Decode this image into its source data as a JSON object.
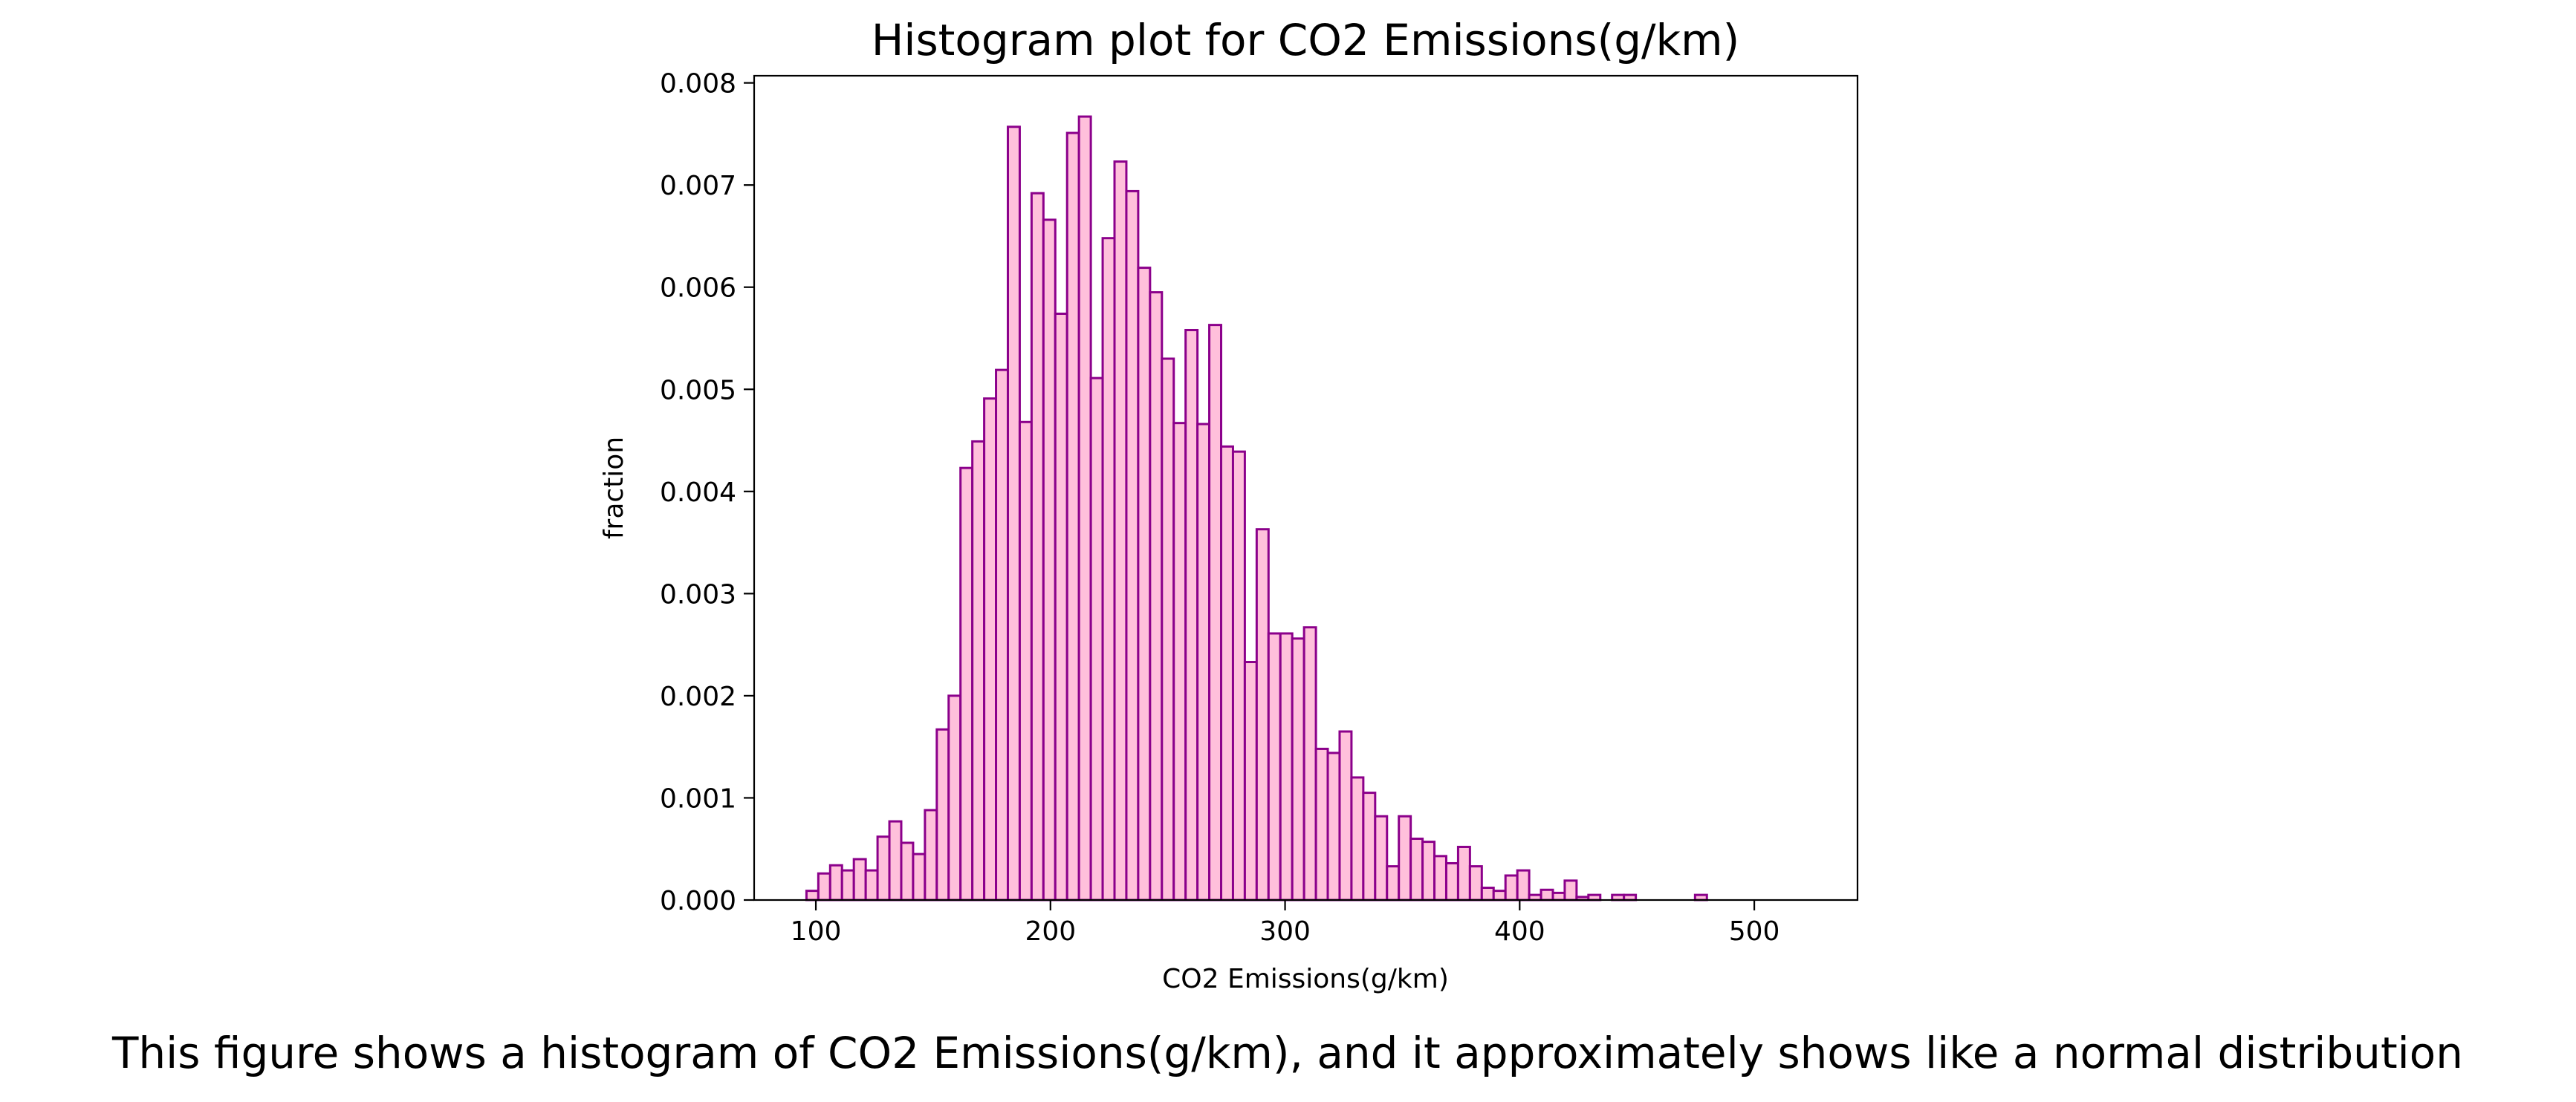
{
  "chart_data": {
    "type": "bar",
    "title": "Histogram plot for CO2 Emissions(g/km)",
    "xlabel": "CO2 Emissions(g/km)",
    "ylabel": "fraction",
    "caption": "This figure shows a histogram of CO2 Emissions(g/km), and it approximately shows like a normal distribution",
    "xlim": [
      73.7,
      544
    ],
    "ylim": [
      0,
      0.00807
    ],
    "xticks": [
      100,
      200,
      300,
      400,
      500
    ],
    "xtick_labels": [
      "100",
      "200",
      "300",
      "400",
      "500"
    ],
    "yticks": [
      0,
      0.001,
      0.002,
      0.003,
      0.004,
      0.005,
      0.006,
      0.007,
      0.008
    ],
    "ytick_labels": [
      "0.000",
      "0.001",
      "0.002",
      "0.003",
      "0.004",
      "0.005",
      "0.006",
      "0.007",
      "0.008"
    ],
    "bin_start": 96,
    "bin_width": 5.05,
    "values": [
      9e-05,
      0.00026,
      0.00034,
      0.00029,
      0.0004,
      0.00029,
      0.00062,
      0.00077,
      0.00056,
      0.00045,
      0.00088,
      0.00167,
      0.002,
      0.00423,
      0.00449,
      0.00491,
      0.00519,
      0.00757,
      0.00468,
      0.00692,
      0.00666,
      0.00574,
      0.00751,
      0.00767,
      0.00511,
      0.00648,
      0.00723,
      0.00694,
      0.00619,
      0.00595,
      0.0053,
      0.00467,
      0.00558,
      0.00466,
      0.00563,
      0.00444,
      0.00439,
      0.00233,
      0.00363,
      0.00261,
      0.00261,
      0.00256,
      0.00267,
      0.00148,
      0.00144,
      0.00165,
      0.0012,
      0.00105,
      0.00082,
      0.00033,
      0.00082,
      0.0006,
      0.00057,
      0.00043,
      0.00036,
      0.00052,
      0.00033,
      0.00012,
      9e-05,
      0.00024,
      0.00029,
      5e-05,
      0.0001,
      7e-05,
      0.00019,
      3e-05,
      5e-05,
      0.0,
      5e-05,
      5e-05,
      0.0,
      0.0,
      0.0,
      0.0,
      0.0,
      5e-05
    ],
    "bar_fill": "#ffc0db",
    "bar_edge": "#8b008b",
    "grid": false,
    "legend": "none"
  }
}
